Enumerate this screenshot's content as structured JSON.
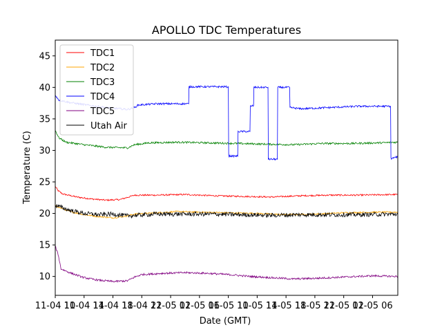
{
  "chart_data": {
    "type": "line",
    "title": "APOLLO TDC Temperatures",
    "xlabel": "Date (GMT)",
    "ylabel": "Temperature (C)",
    "xlim_hours": [
      0,
      47.5
    ],
    "ylim": [
      7,
      47.5
    ],
    "yticks": [
      10,
      15,
      20,
      25,
      30,
      35,
      40,
      45
    ],
    "xtick_hours": [
      0,
      4,
      8,
      12,
      16,
      20,
      24,
      28,
      32,
      36,
      40,
      44
    ],
    "xtick_labels": [
      "11-04 10",
      "11-04 14",
      "11-04 18",
      "11-04 22",
      "11-05 02",
      "11-05 06",
      "11-05 10",
      "11-05 14",
      "11-05 18",
      "11-05 22",
      "11-05 02",
      "11-05 06"
    ],
    "grid": false,
    "legend_position": "top-left",
    "series": [
      {
        "name": "TDC1",
        "color": "#ff0000",
        "noise": 0.12,
        "points": [
          [
            0,
            24.3
          ],
          [
            0.4,
            23.6
          ],
          [
            1,
            23.1
          ],
          [
            3,
            22.6
          ],
          [
            5,
            22.3
          ],
          [
            7,
            22.1
          ],
          [
            9,
            22.2
          ],
          [
            11,
            22.9
          ],
          [
            14,
            22.9
          ],
          [
            18,
            23.0
          ],
          [
            22,
            22.8
          ],
          [
            26,
            22.7
          ],
          [
            30,
            22.6
          ],
          [
            34,
            22.8
          ],
          [
            38,
            22.9
          ],
          [
            42,
            22.9
          ],
          [
            47.5,
            23.0
          ]
        ]
      },
      {
        "name": "TDC2",
        "color": "#ffa500",
        "noise": 0.12,
        "points": [
          [
            0,
            21.2
          ],
          [
            2,
            20.3
          ],
          [
            4,
            19.8
          ],
          [
            6,
            19.5
          ],
          [
            8,
            19.3
          ],
          [
            10,
            19.6
          ],
          [
            11,
            19.9
          ],
          [
            14,
            20.1
          ],
          [
            17,
            20.3
          ],
          [
            20,
            20.2
          ],
          [
            24,
            20.1
          ],
          [
            28,
            20.0
          ],
          [
            32,
            19.8
          ],
          [
            36,
            19.9
          ],
          [
            40,
            20.1
          ],
          [
            44,
            20.2
          ],
          [
            47.5,
            20.2
          ]
        ]
      },
      {
        "name": "TDC3",
        "color": "#008000",
        "noise": 0.15,
        "points": [
          [
            0,
            33.2
          ],
          [
            0.5,
            32.0
          ],
          [
            1.5,
            31.3
          ],
          [
            4,
            30.9
          ],
          [
            7,
            30.5
          ],
          [
            10,
            30.4
          ],
          [
            11,
            30.9
          ],
          [
            13,
            31.2
          ],
          [
            17,
            31.3
          ],
          [
            21,
            31.2
          ],
          [
            25,
            31.1
          ],
          [
            29,
            31.0
          ],
          [
            33,
            30.9
          ],
          [
            37,
            31.1
          ],
          [
            41,
            31.1
          ],
          [
            45,
            31.2
          ],
          [
            47.5,
            31.3
          ]
        ]
      },
      {
        "name": "TDC4",
        "color": "#0000ff",
        "noise": 0.15,
        "points": [
          [
            0,
            38.8
          ],
          [
            0.5,
            38.0
          ],
          [
            2,
            37.6
          ],
          [
            5,
            37.1
          ],
          [
            8,
            36.7
          ],
          [
            10,
            36.5
          ],
          [
            11,
            36.8
          ],
          [
            11.5,
            37.2
          ],
          [
            14,
            37.4
          ],
          [
            18.5,
            37.4
          ],
          [
            18.55,
            40.1
          ],
          [
            24,
            40.1
          ],
          [
            24.05,
            29.1
          ],
          [
            25.3,
            29.1
          ],
          [
            25.35,
            33.0
          ],
          [
            27,
            33.0
          ],
          [
            27.05,
            37.0
          ],
          [
            27.5,
            37.1
          ],
          [
            27.55,
            40.0
          ],
          [
            29.5,
            40.0
          ],
          [
            29.55,
            28.6
          ],
          [
            30.8,
            28.6
          ],
          [
            30.85,
            40.0
          ],
          [
            32.5,
            40.0
          ],
          [
            32.55,
            36.8
          ],
          [
            34,
            36.6
          ],
          [
            38,
            36.8
          ],
          [
            42,
            37.0
          ],
          [
            46.5,
            37.0
          ],
          [
            46.55,
            28.7
          ],
          [
            47.5,
            29.0
          ]
        ]
      },
      {
        "name": "TDC5",
        "color": "#800080",
        "noise": 0.15,
        "points": [
          [
            0,
            14.8
          ],
          [
            0.4,
            13.5
          ],
          [
            0.8,
            11.2
          ],
          [
            2,
            10.6
          ],
          [
            4,
            9.8
          ],
          [
            6,
            9.4
          ],
          [
            8,
            9.2
          ],
          [
            10,
            9.3
          ],
          [
            11,
            9.9
          ],
          [
            12,
            10.3
          ],
          [
            15,
            10.5
          ],
          [
            18,
            10.6
          ],
          [
            21,
            10.5
          ],
          [
            24,
            10.3
          ],
          [
            27,
            10.0
          ],
          [
            30,
            9.8
          ],
          [
            33,
            9.6
          ],
          [
            36,
            9.7
          ],
          [
            40,
            9.9
          ],
          [
            44,
            10.1
          ],
          [
            47.5,
            10.0
          ]
        ]
      },
      {
        "name": "Utah Air",
        "color": "#000000",
        "noise": 0.35,
        "points": [
          [
            0,
            21.3
          ],
          [
            2,
            20.5
          ],
          [
            4,
            20.0
          ],
          [
            6,
            19.8
          ],
          [
            8,
            19.9
          ],
          [
            10,
            19.6
          ],
          [
            11,
            19.7
          ],
          [
            14,
            19.9
          ],
          [
            18,
            19.9
          ],
          [
            22,
            19.9
          ],
          [
            26,
            19.8
          ],
          [
            30,
            19.7
          ],
          [
            34,
            19.8
          ],
          [
            38,
            19.8
          ],
          [
            42,
            19.8
          ],
          [
            47.5,
            19.9
          ]
        ]
      }
    ]
  }
}
